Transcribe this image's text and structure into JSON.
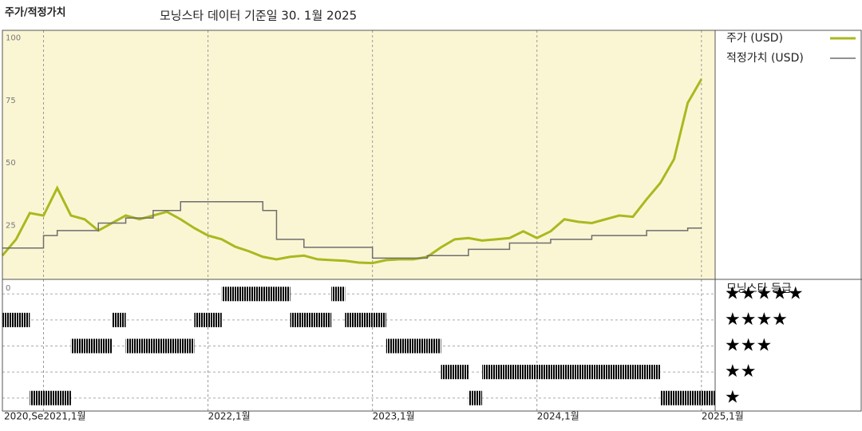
{
  "header": {
    "title": "주가/적정가치",
    "subtitle": "모닝스타 데이터 기준일 30. 1월 2025"
  },
  "chart_data": [
    {
      "type": "line",
      "x": [
        "2020-10",
        "2020-11",
        "2020-12",
        "2021-01",
        "2021-02",
        "2021-03",
        "2021-04",
        "2021-05",
        "2021-06",
        "2021-07",
        "2021-08",
        "2021-09",
        "2021-10",
        "2021-11",
        "2021-12",
        "2022-01",
        "2022-02",
        "2022-03",
        "2022-04",
        "2022-05",
        "2022-06",
        "2022-07",
        "2022-08",
        "2022-09",
        "2022-10",
        "2022-11",
        "2022-12",
        "2023-01",
        "2023-02",
        "2023-03",
        "2023-04",
        "2023-05",
        "2023-06",
        "2023-07",
        "2023-08",
        "2023-09",
        "2023-10",
        "2023-11",
        "2023-12",
        "2024-01",
        "2024-02",
        "2024-03",
        "2024-04",
        "2024-05",
        "2024-06",
        "2024-07",
        "2024-08",
        "2024-09",
        "2024-10",
        "2024-11",
        "2024-12",
        "2025-01"
      ],
      "series": [
        {
          "name": "주가 (USD)",
          "color": "#a9b91e",
          "width": 3,
          "values": [
            13,
            19.5,
            30,
            29,
            40,
            29,
            27.5,
            23,
            26,
            29,
            27.5,
            29,
            30.5,
            27.5,
            24,
            21,
            19.5,
            16.5,
            14.7,
            12.5,
            11.5,
            12.5,
            13,
            11.5,
            11.2,
            10.9,
            10.2,
            10,
            11.2,
            11.5,
            11.5,
            12.5,
            16.3,
            19.5,
            20,
            19,
            19.5,
            20,
            22.7,
            20,
            22.7,
            27.5,
            26.5,
            26,
            27.5,
            29,
            28.5,
            35.5,
            42,
            51.5,
            74,
            83.5
          ]
        },
        {
          "name": "적정가치 (USD)",
          "color": "#6e6e6e",
          "width": 1.5,
          "step": true,
          "values": [
            16,
            16,
            16,
            21,
            23,
            23,
            23,
            26,
            26,
            28,
            28,
            31,
            31,
            34.5,
            34.5,
            34.5,
            34.5,
            34.5,
            34.5,
            31,
            19.5,
            19.5,
            16.3,
            16.3,
            16.3,
            16.3,
            16.3,
            12,
            12,
            12,
            12,
            13,
            13,
            13,
            15.5,
            15.5,
            15.5,
            18,
            18,
            18,
            19.5,
            19.5,
            19.5,
            21,
            21,
            21,
            21,
            23,
            23,
            23,
            24,
            24
          ]
        }
      ],
      "xlim": [
        "2020-10",
        "2025-02"
      ],
      "xticks": [
        {
          "value": "2020-10",
          "label": "2020,Se"
        },
        {
          "value": "2021-01",
          "label": "2021,1월"
        },
        {
          "value": "2022-01",
          "label": "2022,1월"
        },
        {
          "value": "2023-01",
          "label": "2023,1월"
        },
        {
          "value": "2024-01",
          "label": "2024,1월"
        },
        {
          "value": "2025-01",
          "label": "2025,1월"
        }
      ],
      "ylim": [
        3.5,
        103
      ],
      "yticks": [
        0,
        25,
        50,
        75,
        100
      ],
      "background": "#faf6d4"
    },
    {
      "type": "rating",
      "title": "모닝스타 등급",
      "x": [
        "2020-10",
        "2020-11",
        "2020-12",
        "2021-01",
        "2021-02",
        "2021-03",
        "2021-04",
        "2021-05",
        "2021-06",
        "2021-07",
        "2021-08",
        "2021-09",
        "2021-10",
        "2021-11",
        "2021-12",
        "2022-01",
        "2022-02",
        "2022-03",
        "2022-04",
        "2022-05",
        "2022-06",
        "2022-07",
        "2022-08",
        "2022-09",
        "2022-10",
        "2022-11",
        "2022-12",
        "2023-01",
        "2023-02",
        "2023-03",
        "2023-04",
        "2023-05",
        "2023-06",
        "2023-07",
        "2023-08",
        "2023-09",
        "2023-10",
        "2023-11",
        "2023-12",
        "2024-01",
        "2024-02",
        "2024-03",
        "2024-04",
        "2024-05",
        "2024-06",
        "2024-07",
        "2024-08",
        "2024-09",
        "2024-10",
        "2024-11",
        "2024-12",
        "2025-01"
      ],
      "values": [
        4,
        4,
        1,
        1,
        1,
        3,
        3,
        3,
        4,
        3,
        3,
        3,
        3,
        3,
        4,
        4,
        5,
        5,
        5,
        5,
        5,
        4,
        4,
        4,
        5,
        4,
        4,
        4,
        3,
        3,
        3,
        3,
        2,
        2,
        1,
        2,
        2,
        2,
        2,
        2,
        2,
        2,
        2,
        2,
        2,
        2,
        2,
        2,
        1,
        1,
        1,
        1
      ],
      "ylim": [
        0.5,
        5.5
      ],
      "yticks": [
        {
          "value": 5,
          "label": "★★★★★"
        },
        {
          "value": 4,
          "label": "★★★★"
        },
        {
          "value": 3,
          "label": "★★★"
        },
        {
          "value": 2,
          "label": "★★"
        },
        {
          "value": 1,
          "label": "★"
        }
      ],
      "color": "#454545",
      "top_color": "#2f8466"
    }
  ]
}
